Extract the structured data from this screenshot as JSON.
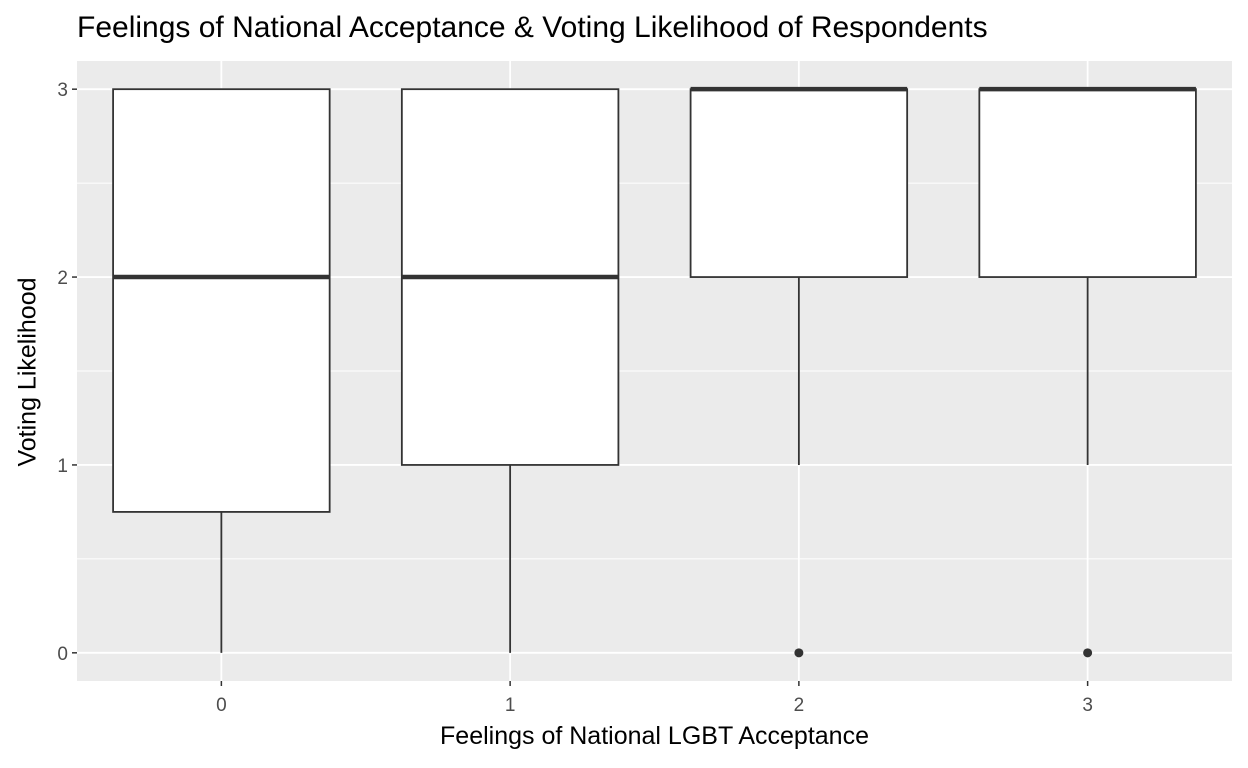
{
  "chart_data": {
    "type": "boxplot",
    "title": "Feelings of National Acceptance & Voting Likelihood of Respondents",
    "xlabel": "Feelings of National LGBT Acceptance",
    "ylabel": "Voting Likelihood",
    "categories": [
      "0",
      "1",
      "2",
      "3"
    ],
    "boxes": [
      {
        "category": "0",
        "whisker_low": 0,
        "q1": 0.75,
        "median": 2,
        "q3": 3,
        "whisker_high": 3,
        "outliers": []
      },
      {
        "category": "1",
        "whisker_low": 0,
        "q1": 1,
        "median": 2,
        "q3": 3,
        "whisker_high": 3,
        "outliers": []
      },
      {
        "category": "2",
        "whisker_low": 1,
        "q1": 2,
        "median": 3,
        "q3": 3,
        "whisker_high": 3,
        "outliers": [
          0
        ]
      },
      {
        "category": "3",
        "whisker_low": 1,
        "q1": 2,
        "median": 3,
        "q3": 3,
        "whisker_high": 3,
        "outliers": [
          0
        ]
      }
    ],
    "ylim": [
      -0.15,
      3.15
    ],
    "y_ticks": [
      "0",
      "1",
      "2",
      "3"
    ],
    "grid": true,
    "colors": {
      "panel_background": "#ebebeb",
      "gridline": "#ffffff",
      "box_fill": "#ffffff",
      "box_stroke": "#333333",
      "tick_text": "#4d4d4d"
    }
  }
}
